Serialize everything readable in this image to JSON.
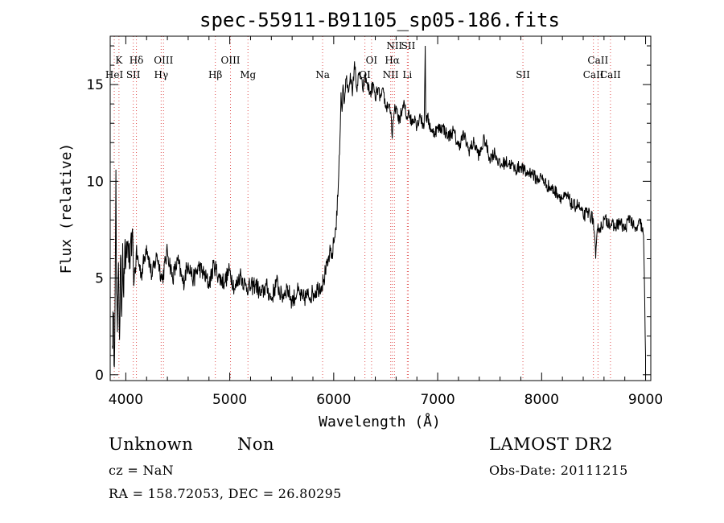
{
  "chart_data": {
    "type": "line",
    "title": "spec-55911-B91105_sp05-186.fits",
    "xlabel": "Wavelength (Å)",
    "ylabel": "Flux (relative)",
    "xlim": [
      3850,
      9050
    ],
    "ylim": [
      -0.3,
      17.5
    ],
    "xticks": [
      4000,
      5000,
      6000,
      7000,
      8000,
      9000
    ],
    "yticks": [
      0,
      5,
      10,
      15
    ],
    "grid": false,
    "series": [
      {
        "x": [
          3870,
          3880,
          3890,
          3900,
          3905,
          3910,
          3920,
          3930,
          3940,
          3950,
          3960,
          3970,
          3980,
          3990,
          4000,
          4020,
          4040,
          4060,
          4080,
          4100,
          4150,
          4200,
          4250,
          4300,
          4350,
          4400,
          4450,
          4500,
          4550,
          4600,
          4650,
          4700,
          4750,
          4800,
          4850,
          4900,
          4950,
          5000,
          5050,
          5100,
          5150,
          5200,
          5250,
          5300,
          5350,
          5400,
          5450,
          5500,
          5550,
          5600,
          5650,
          5700,
          5750,
          5800,
          5850,
          5900,
          5920,
          5940,
          5960,
          5980,
          6000,
          6020,
          6040,
          6060,
          6070,
          6080,
          6090,
          6100,
          6120,
          6140,
          6160,
          6180,
          6200,
          6220,
          6250,
          6280,
          6300,
          6320,
          6350,
          6380,
          6400,
          6420,
          6450,
          6480,
          6500,
          6530,
          6550,
          6563,
          6580,
          6600,
          6620,
          6650,
          6680,
          6700,
          6720,
          6750,
          6780,
          6800,
          6830,
          6850,
          6870,
          6880,
          6885,
          6890,
          6900,
          6950,
          7000,
          7050,
          7100,
          7150,
          7200,
          7250,
          7300,
          7350,
          7400,
          7450,
          7500,
          7550,
          7600,
          7650,
          7700,
          7750,
          7800,
          7850,
          7900,
          7950,
          8000,
          8050,
          8100,
          8150,
          8200,
          8250,
          8300,
          8350,
          8400,
          8450,
          8498,
          8520,
          8542,
          8560,
          8600,
          8650,
          8700,
          8750,
          8800,
          8850,
          8900,
          8950,
          8980,
          9000
        ],
        "y": [
          1.5,
          3.2,
          0.4,
          6.5,
          10.6,
          4.2,
          2.2,
          5.8,
          1.8,
          6.2,
          3.0,
          6.8,
          4.0,
          6.6,
          5.6,
          6.9,
          5.5,
          7.3,
          4.8,
          6.3,
          5.2,
          6.7,
          5.1,
          6.2,
          4.9,
          6.4,
          5.0,
          5.9,
          4.7,
          5.8,
          4.9,
          5.6,
          5.2,
          4.7,
          5.7,
          5.0,
          4.8,
          5.4,
          4.4,
          5.2,
          4.6,
          4.5,
          4.7,
          4.1,
          4.6,
          3.9,
          4.8,
          4.0,
          4.5,
          3.8,
          4.3,
          3.9,
          4.1,
          4.2,
          4.5,
          4.8,
          5.3,
          5.6,
          6.3,
          6.0,
          6.8,
          7.6,
          9.2,
          12.2,
          14.6,
          13.6,
          15.0,
          14.0,
          15.3,
          14.6,
          15.6,
          14.4,
          16.2,
          14.8,
          15.6,
          14.7,
          15.4,
          15.1,
          14.5,
          15.0,
          14.2,
          14.8,
          14.3,
          14.6,
          13.8,
          14.0,
          13.6,
          12.2,
          13.5,
          13.9,
          13.1,
          13.5,
          14.0,
          13.2,
          13.7,
          13.0,
          13.4,
          12.8,
          13.5,
          13.0,
          12.9,
          17.0,
          13.6,
          13.1,
          13.3,
          12.5,
          12.7,
          12.8,
          12.3,
          12.6,
          11.8,
          12.4,
          11.6,
          12.0,
          11.3,
          12.2,
          11.2,
          11.5,
          10.8,
          11.0,
          10.9,
          10.6,
          10.8,
          10.4,
          10.5,
          10.1,
          10.2,
          9.8,
          9.6,
          9.4,
          9.1,
          9.2,
          8.7,
          8.8,
          8.2,
          8.4,
          8.0,
          6.0,
          7.8,
          7.5,
          8.0,
          7.9,
          7.6,
          7.9,
          7.5,
          8.2,
          7.4,
          7.9,
          7.2,
          1.0
        ]
      }
    ],
    "lines": [
      {
        "wl": 3889,
        "labels": [
          "HeI"
        ]
      },
      {
        "wl": 3934,
        "labels": [
          "K"
        ]
      },
      {
        "wl": 4072,
        "labels": [
          "SII"
        ]
      },
      {
        "wl": 4102,
        "labels": [
          "Hδ"
        ]
      },
      {
        "wl": 4340,
        "labels": [
          "Hγ"
        ]
      },
      {
        "wl": 4363,
        "labels": [
          "OIII"
        ]
      },
      {
        "wl": 4861,
        "labels": [
          "Hβ"
        ]
      },
      {
        "wl": 5007,
        "labels": [
          "OIII"
        ]
      },
      {
        "wl": 5175,
        "labels": [
          "Mg"
        ]
      },
      {
        "wl": 5893,
        "labels": [
          "Na"
        ]
      },
      {
        "wl": 6300,
        "labels": [
          "OI"
        ]
      },
      {
        "wl": 6364,
        "labels": [
          "OI"
        ]
      },
      {
        "wl": 6548,
        "labels": [
          "NII"
        ]
      },
      {
        "wl": 6563,
        "labels": [
          "Hα"
        ]
      },
      {
        "wl": 6584,
        "labels": [
          "NII"
        ]
      },
      {
        "wl": 6708,
        "labels": [
          "Li"
        ]
      },
      {
        "wl": 6717,
        "labels": [
          "SII"
        ]
      },
      {
        "wl": 7820,
        "labels": [
          "SII"
        ]
      },
      {
        "wl": 8498,
        "labels": [
          "CaII"
        ]
      },
      {
        "wl": 8542,
        "labels": [
          "CaII"
        ]
      },
      {
        "wl": 8662,
        "labels": [
          "CaII"
        ]
      }
    ]
  },
  "info": {
    "class_text": "Unknown",
    "subclass_text": "Non",
    "survey": "LAMOST DR2",
    "cz": "cz = NaN",
    "obs_date": "Obs-Date: 20111215",
    "coords": "RA = 158.72053, DEC =  26.80295"
  }
}
